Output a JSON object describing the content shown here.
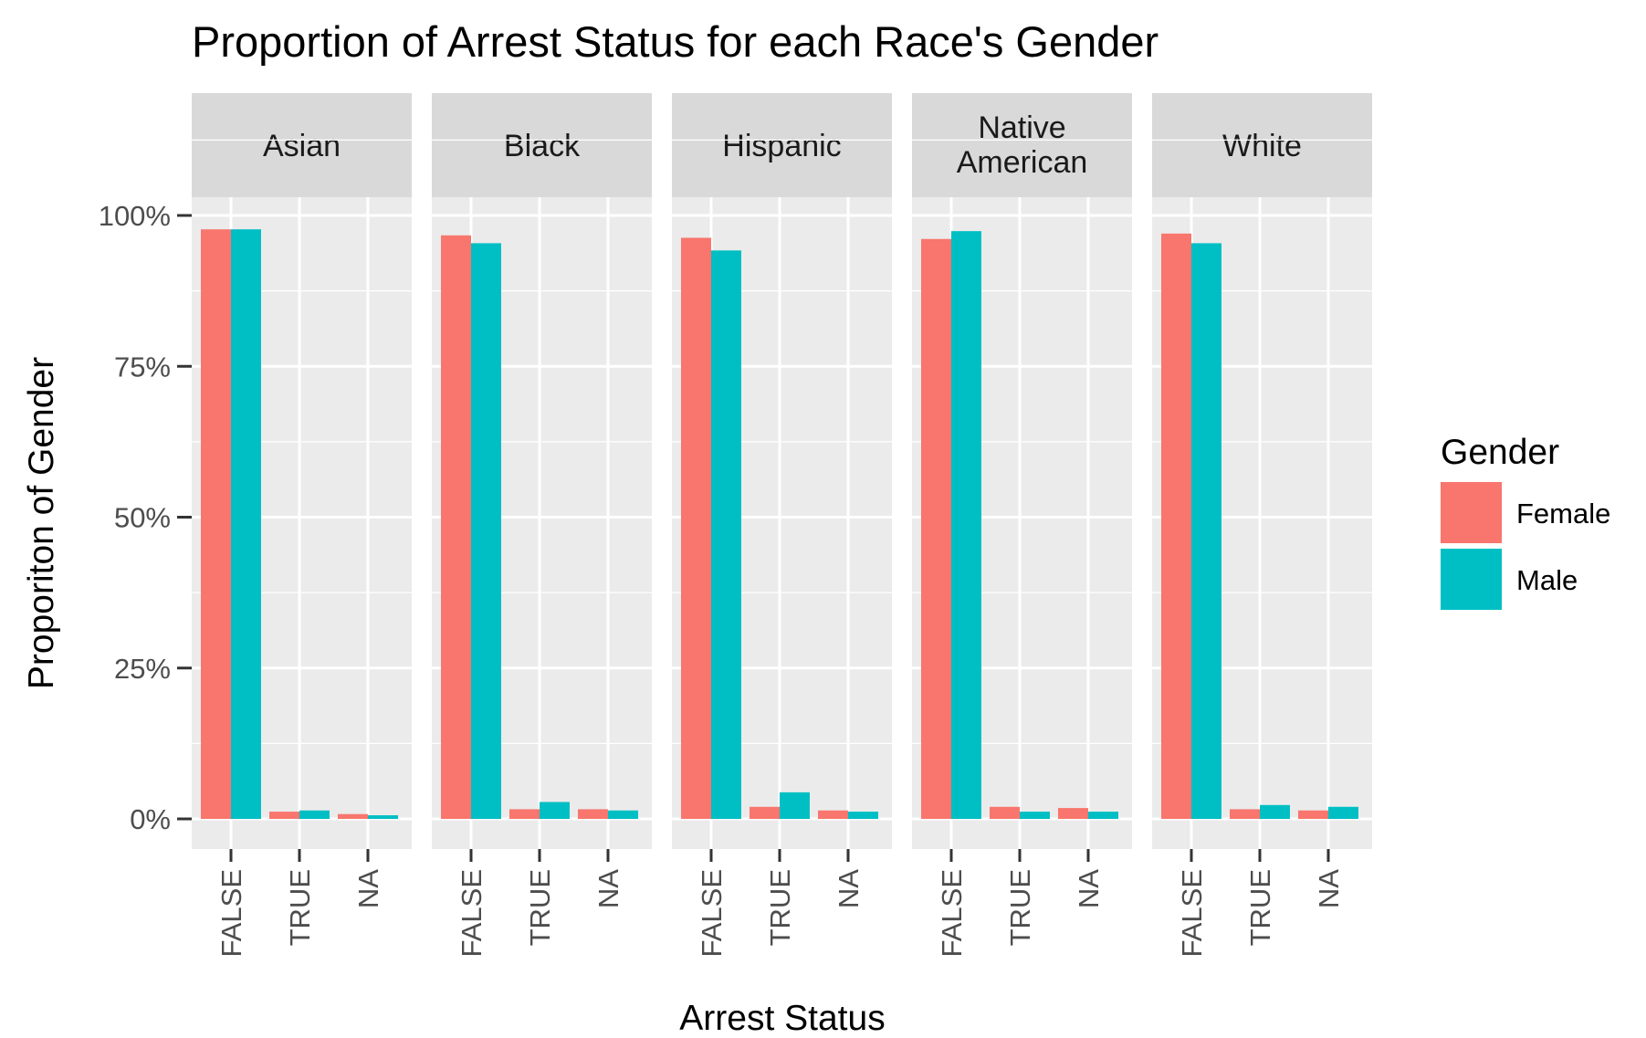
{
  "chart_data": {
    "type": "bar",
    "title": "Proportion of Arrest Status for each Race's Gender",
    "xlabel": "Arrest Status",
    "ylabel": "Proporiton of Gender",
    "ylim": [
      -0.05,
      1.2
    ],
    "yticks": [
      0,
      0.25,
      0.5,
      0.75,
      1.0
    ],
    "ytick_labels": [
      "0%",
      "25%",
      "50%",
      "75%",
      "100%"
    ],
    "categories": [
      "FALSE",
      "TRUE",
      "NA"
    ],
    "facets": [
      {
        "label": "Asian",
        "series": [
          {
            "name": "Female",
            "values": [
              0.977,
              0.012,
              0.008
            ]
          },
          {
            "name": "Male",
            "values": [
              0.977,
              0.014,
              0.006
            ]
          }
        ]
      },
      {
        "label": "Black",
        "series": [
          {
            "name": "Female",
            "values": [
              0.967,
              0.016,
              0.016
            ]
          },
          {
            "name": "Male",
            "values": [
              0.954,
              0.028,
              0.014
            ]
          }
        ]
      },
      {
        "label": "Hispanic",
        "series": [
          {
            "name": "Female",
            "values": [
              0.963,
              0.02,
              0.014
            ]
          },
          {
            "name": "Male",
            "values": [
              0.942,
              0.044,
              0.012
            ]
          }
        ]
      },
      {
        "label": "Native\nAmerican",
        "series": [
          {
            "name": "Female",
            "values": [
              0.961,
              0.02,
              0.018
            ]
          },
          {
            "name": "Male",
            "values": [
              0.974,
              0.012,
              0.012
            ]
          }
        ]
      },
      {
        "label": "White",
        "series": [
          {
            "name": "Female",
            "values": [
              0.97,
              0.016,
              0.014
            ]
          },
          {
            "name": "Male",
            "values": [
              0.954,
              0.023,
              0.02
            ]
          }
        ]
      }
    ],
    "legend": {
      "title": "Gender",
      "position": "right",
      "items": [
        {
          "name": "Female",
          "color": "#F8766D"
        },
        {
          "name": "Male",
          "color": "#00BFC4"
        }
      ]
    },
    "grid": true,
    "colors": {
      "panel_background": "#EBEBEB",
      "strip_background": "#D9D9D9",
      "grid": "#FFFFFF"
    }
  }
}
